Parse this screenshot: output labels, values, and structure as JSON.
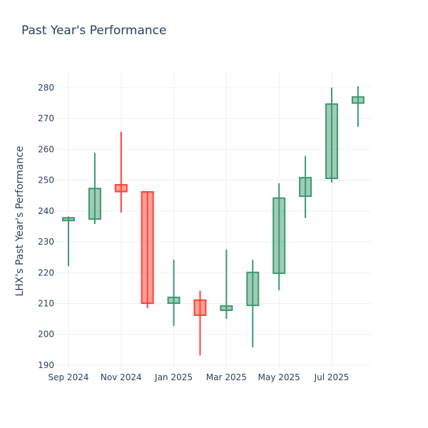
{
  "chart_data": {
    "type": "candlestick",
    "title": "Past Year's Performance",
    "xlabel": "",
    "ylabel": "LHX's Past Year's Performance",
    "ylim": [
      188.6,
      285.3
    ],
    "grid": true,
    "legend": "none",
    "increasing_color": "#3d9970",
    "decreasing_color": "#ff4136",
    "x_ticks": [
      {
        "label": "Sep 2024",
        "index": 0
      },
      {
        "label": "Nov 2024",
        "index": 2
      },
      {
        "label": "Jan 2025",
        "index": 4
      },
      {
        "label": "Mar 2025",
        "index": 6
      },
      {
        "label": "May 2025",
        "index": 8
      },
      {
        "label": "Jul 2025",
        "index": 10
      }
    ],
    "y_ticks": [
      190,
      200,
      210,
      220,
      230,
      240,
      250,
      260,
      270,
      280
    ],
    "candles": [
      {
        "month": "2024-09",
        "open": 236.9,
        "high": 238.2,
        "low": 222.1,
        "close": 237.8
      },
      {
        "month": "2024-10",
        "open": 237.4,
        "high": 258.9,
        "low": 235.8,
        "close": 247.3
      },
      {
        "month": "2024-11",
        "open": 248.5,
        "high": 265.7,
        "low": 239.5,
        "close": 246.3
      },
      {
        "month": "2024-12",
        "open": 246.2,
        "high": 246.2,
        "low": 208.5,
        "close": 210.1
      },
      {
        "month": "2025-01",
        "open": 210.1,
        "high": 224.2,
        "low": 202.7,
        "close": 212.0
      },
      {
        "month": "2025-02",
        "open": 211.1,
        "high": 214.1,
        "low": 193.2,
        "close": 206.2
      },
      {
        "month": "2025-03",
        "open": 207.8,
        "high": 227.5,
        "low": 205.0,
        "close": 209.2
      },
      {
        "month": "2025-04",
        "open": 209.4,
        "high": 224.2,
        "low": 195.8,
        "close": 220.1
      },
      {
        "month": "2025-05",
        "open": 219.8,
        "high": 249.0,
        "low": 214.3,
        "close": 244.2
      },
      {
        "month": "2025-06",
        "open": 244.8,
        "high": 257.8,
        "low": 237.7,
        "close": 250.8
      },
      {
        "month": "2025-07",
        "open": 250.6,
        "high": 280.0,
        "low": 249.2,
        "close": 274.7
      },
      {
        "month": "2025-08",
        "open": 275.0,
        "high": 280.5,
        "low": 267.3,
        "close": 277.0
      }
    ]
  }
}
